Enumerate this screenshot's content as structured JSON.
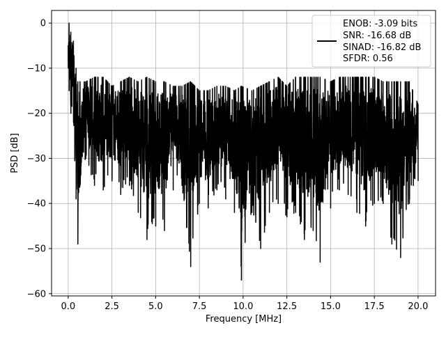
{
  "chart_data": {
    "type": "line",
    "xlabel": "Frequency [MHz]",
    "ylabel": "PSD [dB]",
    "xlim": [
      -0.95,
      21.0
    ],
    "ylim": [
      -60.5,
      2.8
    ],
    "xticks": [
      0.0,
      2.5,
      5.0,
      7.5,
      10.0,
      12.5,
      15.0,
      17.5,
      20.0
    ],
    "xtick_labels": [
      "0.0",
      "2.5",
      "5.0",
      "7.5",
      "10.0",
      "12.5",
      "15.0",
      "17.5",
      "20.0"
    ],
    "yticks": [
      0,
      -10,
      -20,
      -30,
      -40,
      -50,
      -60
    ],
    "ytick_labels": [
      "0",
      "−10",
      "−20",
      "−30",
      "−40",
      "−50",
      "−60"
    ],
    "grid": true,
    "legend_position": "top-right",
    "series": [
      {
        "name": "ENOB: -3.09 bits\nSNR: -16.68 dB\nSINAD: -16.82 dB\nSFDR: 0.56",
        "legend_lines": [
          "ENOB: -3.09 bits",
          "SNR: -16.68 dB",
          "SINAD: -16.82 dB",
          "SFDR: 0.56"
        ],
        "color": "#000000",
        "envelope": [
          {
            "x": 0.0,
            "max": -5,
            "min": -10
          },
          {
            "x": 0.05,
            "max": 0,
            "min": -15
          },
          {
            "x": 0.15,
            "max": -2,
            "min": -20
          },
          {
            "x": 0.3,
            "max": -4,
            "min": -22
          },
          {
            "x": 0.45,
            "max": -10,
            "min": -39
          },
          {
            "x": 0.55,
            "max": -13,
            "min": -49
          },
          {
            "x": 1.0,
            "max": -13,
            "min": -30
          },
          {
            "x": 1.5,
            "max": -12,
            "min": -36
          },
          {
            "x": 2.0,
            "max": -12,
            "min": -37
          },
          {
            "x": 2.5,
            "max": -14,
            "min": -35
          },
          {
            "x": 3.0,
            "max": -13,
            "min": -38
          },
          {
            "x": 3.5,
            "max": -12,
            "min": -36
          },
          {
            "x": 4.0,
            "max": -13,
            "min": -42
          },
          {
            "x": 4.5,
            "max": -12,
            "min": -48
          },
          {
            "x": 5.0,
            "max": -13,
            "min": -45
          },
          {
            "x": 5.5,
            "max": -13,
            "min": -46
          },
          {
            "x": 6.0,
            "max": -14,
            "min": -37
          },
          {
            "x": 6.5,
            "max": -14,
            "min": -36
          },
          {
            "x": 7.0,
            "max": -13,
            "min": -54
          },
          {
            "x": 7.5,
            "max": -15,
            "min": -40
          },
          {
            "x": 8.0,
            "max": -15,
            "min": -41
          },
          {
            "x": 8.5,
            "max": -14,
            "min": -37
          },
          {
            "x": 9.0,
            "max": -14,
            "min": -39
          },
          {
            "x": 9.5,
            "max": -15,
            "min": -42
          },
          {
            "x": 9.9,
            "max": -14,
            "min": -57
          },
          {
            "x": 10.5,
            "max": -15,
            "min": -42
          },
          {
            "x": 11.0,
            "max": -14,
            "min": -50
          },
          {
            "x": 11.5,
            "max": -13,
            "min": -42
          },
          {
            "x": 12.0,
            "max": -12,
            "min": -40
          },
          {
            "x": 12.5,
            "max": -14,
            "min": -43
          },
          {
            "x": 13.0,
            "max": -12,
            "min": -42
          },
          {
            "x": 13.5,
            "max": -12,
            "min": -48
          },
          {
            "x": 14.0,
            "max": -12,
            "min": -46
          },
          {
            "x": 14.4,
            "max": -12,
            "min": -53
          },
          {
            "x": 15.0,
            "max": -13,
            "min": -41
          },
          {
            "x": 15.5,
            "max": -12,
            "min": -37
          },
          {
            "x": 16.0,
            "max": -12,
            "min": -38
          },
          {
            "x": 16.5,
            "max": -12,
            "min": -42
          },
          {
            "x": 17.0,
            "max": -12,
            "min": -45
          },
          {
            "x": 17.5,
            "max": -12,
            "min": -40
          },
          {
            "x": 18.0,
            "max": -13,
            "min": -40
          },
          {
            "x": 18.5,
            "max": -13,
            "min": -49
          },
          {
            "x": 19.0,
            "max": -13,
            "min": -52
          },
          {
            "x": 19.5,
            "max": -13,
            "min": -40
          },
          {
            "x": 20.0,
            "max": -18,
            "min": -35
          }
        ]
      }
    ]
  }
}
